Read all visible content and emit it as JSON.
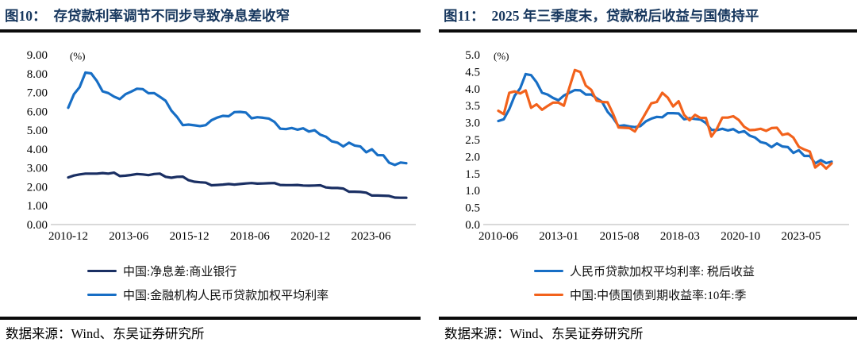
{
  "source_label": "数据来源：Wind、东吴证券研究所",
  "chart_data": [
    {
      "type": "line",
      "fig_label": "图10：",
      "title": "存贷款利率调节不同步导致净息差收窄",
      "unit_label": "(%)",
      "ylim": [
        0,
        9
      ],
      "ytick_labels": [
        "9.00",
        "8.00",
        "7.00",
        "6.00",
        "5.00",
        "4.00",
        "3.00",
        "2.00",
        "1.00",
        "0.00"
      ],
      "xtick_labels": [
        "2010-12",
        "2013-06",
        "2015-12",
        "2018-06",
        "2020-12",
        "2023-06"
      ],
      "x_start": "2010-12",
      "x_end": "2025-09",
      "frequency": "quarterly",
      "grid": false,
      "legend_position": "bottom",
      "axis_line_color": "#D9D9D9",
      "series": [
        {
          "name": "中国:净息差:商业银行",
          "color": "#1A2F63",
          "values": [
            2.5,
            2.6,
            2.66,
            2.7,
            2.7,
            2.7,
            2.73,
            2.7,
            2.75,
            2.57,
            2.59,
            2.63,
            2.68,
            2.66,
            2.62,
            2.68,
            2.7,
            2.53,
            2.48,
            2.53,
            2.54,
            2.35,
            2.27,
            2.24,
            2.22,
            2.08,
            2.1,
            2.12,
            2.15,
            2.12,
            2.15,
            2.18,
            2.2,
            2.17,
            2.18,
            2.19,
            2.2,
            2.1,
            2.09,
            2.09,
            2.1,
            2.07,
            2.06,
            2.07,
            2.08,
            1.97,
            1.94,
            1.94,
            1.91,
            1.74,
            1.74,
            1.73,
            1.69,
            1.54,
            1.54,
            1.53,
            1.52,
            1.43,
            1.42,
            1.42
          ]
        },
        {
          "name": "中国:金融机构人民币贷款加权平均利率",
          "color": "#176EC5",
          "values": [
            6.19,
            6.91,
            7.29,
            8.06,
            8.01,
            7.61,
            7.06,
            6.97,
            6.78,
            6.65,
            6.91,
            7.05,
            7.2,
            7.18,
            6.96,
            6.97,
            6.77,
            6.56,
            6.04,
            5.7,
            5.27,
            5.3,
            5.26,
            5.22,
            5.27,
            5.53,
            5.67,
            5.76,
            5.74,
            5.96,
            5.97,
            5.94,
            5.63,
            5.69,
            5.66,
            5.62,
            5.44,
            5.08,
            5.06,
            5.12,
            5.03,
            5.1,
            4.93,
            5.0,
            4.76,
            4.65,
            4.41,
            4.34,
            4.14,
            4.34,
            4.19,
            4.14,
            3.83,
            3.99,
            3.68,
            3.67,
            3.28,
            3.16,
            3.29,
            3.25
          ]
        }
      ],
      "source": "数据来源：Wind、东吴证券研究所"
    },
    {
      "type": "line",
      "fig_label": "图11：",
      "title": "2025 年三季度末，贷款税后收益与国债持平",
      "unit_label": "(%)",
      "ylim": [
        0,
        5
      ],
      "ytick_labels": [
        "5.0",
        "4.5",
        "4.0",
        "3.5",
        "3.0",
        "2.5",
        "2.0",
        "1.5",
        "1.0",
        "0.5",
        "0.0"
      ],
      "xtick_labels": [
        "2010-06",
        "2013-01",
        "2015-08",
        "2018-03",
        "2020-10",
        "2023-05"
      ],
      "x_start": "2010-06",
      "x_end": "2025-09",
      "frequency": "quarterly",
      "grid": false,
      "legend_position": "bottom",
      "axis_line_color": "#D9D9D9",
      "series": [
        {
          "name": "人民币贷款加权平均利率: 税后收益",
          "color": "#176EC5",
          "values": [
            3.05,
            3.1,
            3.4,
            3.8,
            4.01,
            4.43,
            4.4,
            4.19,
            3.88,
            3.83,
            3.73,
            3.66,
            3.8,
            3.88,
            3.96,
            3.95,
            3.83,
            3.83,
            3.72,
            3.61,
            3.32,
            3.14,
            2.9,
            2.92,
            2.89,
            2.87,
            2.9,
            3.04,
            3.12,
            3.17,
            3.16,
            3.28,
            3.28,
            3.27,
            3.1,
            3.13,
            3.11,
            3.09,
            2.99,
            2.79,
            2.78,
            2.82,
            2.77,
            2.81,
            2.71,
            2.75,
            2.62,
            2.56,
            2.43,
            2.39,
            2.28,
            2.39,
            2.3,
            2.28,
            2.11,
            2.19,
            2.02,
            2.02,
            1.8,
            1.9,
            1.81,
            1.85
          ]
        },
        {
          "name": "中国:中债国债到期收益率:10年:季",
          "color": "#F2621C",
          "values": [
            3.35,
            3.25,
            3.88,
            3.92,
            3.86,
            3.95,
            3.44,
            3.54,
            3.38,
            3.49,
            3.59,
            3.59,
            3.5,
            4.03,
            4.55,
            4.49,
            4.09,
            3.97,
            3.65,
            3.61,
            3.6,
            3.26,
            2.86,
            2.85,
            2.84,
            2.74,
            3.01,
            3.29,
            3.57,
            3.61,
            3.88,
            3.74,
            3.48,
            3.63,
            3.23,
            3.07,
            3.23,
            3.14,
            3.14,
            2.59,
            2.82,
            3.15,
            3.15,
            3.19,
            3.08,
            2.88,
            2.78,
            2.79,
            2.82,
            2.76,
            2.84,
            2.85,
            2.64,
            2.68,
            2.56,
            2.29,
            2.21,
            2.15,
            1.68,
            1.81,
            1.65,
            1.8
          ]
        }
      ],
      "source": "数据来源：Wind、东吴证券研究所"
    }
  ]
}
